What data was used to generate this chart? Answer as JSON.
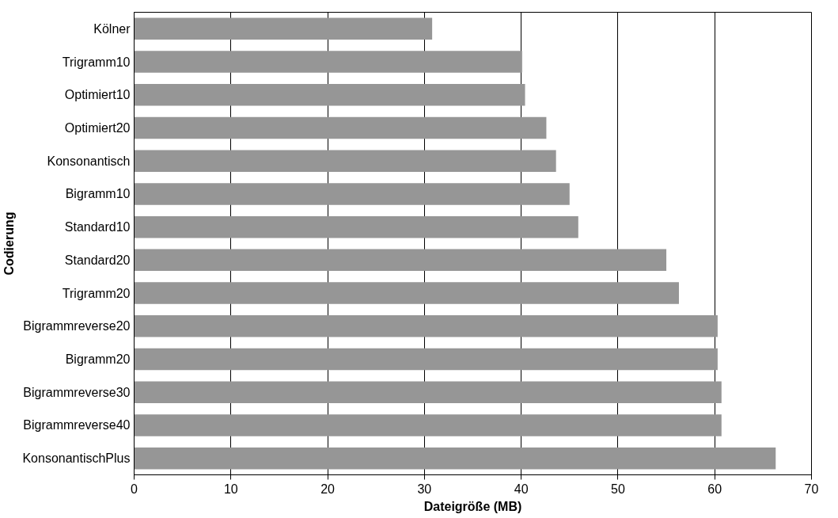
{
  "chart_data": {
    "type": "bar",
    "orientation": "horizontal",
    "xlabel": "Dateigröße (MB)",
    "ylabel": "Codierung",
    "categories": [
      "Kölner",
      "Trigramm10",
      "Optimiert10",
      "Optimiert20",
      "Konsonantisch",
      "Bigramm10",
      "Standard10",
      "Standard20",
      "Trigramm20",
      "Bigrammreverse20",
      "Bigramm20",
      "Bigrammreverse30",
      "Bigrammreverse40",
      "KonsonantischPlus"
    ],
    "values": [
      30.8,
      40.1,
      40.4,
      42.6,
      43.6,
      45.0,
      45.9,
      55.0,
      56.3,
      60.3,
      60.3,
      60.7,
      60.7,
      66.3
    ],
    "color": "#969696",
    "xlim": [
      0,
      70
    ],
    "xticks": [
      0,
      10,
      20,
      30,
      40,
      50,
      60,
      70
    ],
    "grid": "x"
  }
}
